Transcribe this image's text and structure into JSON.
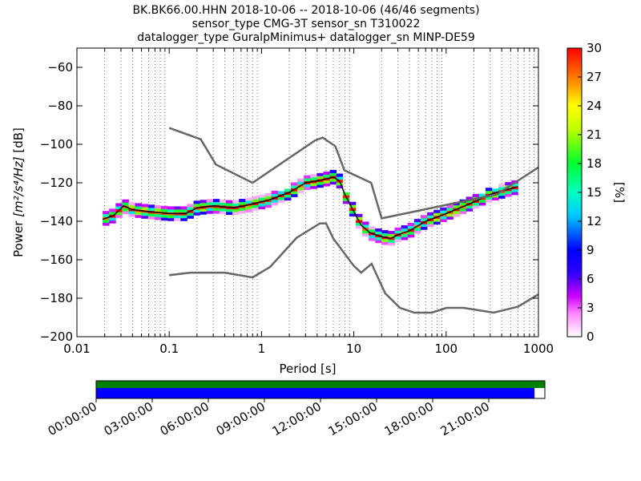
{
  "chart_data": {
    "type": "heatmap",
    "title_lines": [
      "BK.BK66.00.HHN   2018-10-06 -- 2018-10-06  (46/46 segments)",
      "sensor_type CMG-3T sensor_sn T310022",
      "datalogger_type GuralpMinimus+ datalogger_sn MINP-DE59"
    ],
    "xlabel": "Period [s]",
    "ylabel_prefix": "Power ",
    "ylabel_units": "[m²/s⁴/Hz]",
    "ylabel_suffix": " [dB]",
    "x_scale": "log",
    "xlim": [
      0.01,
      1000
    ],
    "ylim": [
      -200,
      -50
    ],
    "x_ticks": [
      0.01,
      0.1,
      1,
      10,
      100,
      1000
    ],
    "x_tick_labels": [
      "0.01",
      "0.1",
      "1",
      "10",
      "100",
      "1000"
    ],
    "y_ticks": [
      -200,
      -180,
      -160,
      -140,
      -120,
      -100,
      -80,
      -60
    ],
    "y_tick_labels": [
      "−200",
      "−180",
      "−160",
      "−140",
      "−120",
      "−100",
      "−80",
      "−60"
    ],
    "grid": "dotted vertical lines at log minors",
    "colorbar": {
      "label": "[%]",
      "min": 0,
      "max": 30,
      "ticks": [
        0,
        3,
        6,
        9,
        12,
        15,
        18,
        21,
        24,
        27,
        30
      ],
      "tick_labels": [
        "0",
        "3",
        "6",
        "9",
        "12",
        "15",
        "18",
        "21",
        "24",
        "27",
        "30"
      ]
    },
    "high_noise_model": {
      "periods": [
        0.1,
        0.22,
        0.32,
        0.8,
        3.8,
        4.6,
        6.3,
        7.9,
        15.4,
        20,
        354.8,
        1000
      ],
      "power": [
        -91.5,
        -97.4,
        -110.5,
        -120,
        -98,
        -96.5,
        -101,
        -113.5,
        -120,
        -138.5,
        -126,
        -112
      ]
    },
    "low_noise_model": {
      "periods": [
        0.1,
        0.17,
        0.4,
        0.8,
        1.24,
        2.4,
        4.3,
        5,
        6,
        10,
        12,
        15.6,
        21.9,
        31.6,
        45,
        70,
        101,
        154,
        328,
        600,
        1000
      ],
      "power": [
        -168,
        -166.7,
        -166.7,
        -169.2,
        -163.7,
        -148.6,
        -141.1,
        -141.1,
        -149,
        -163.2,
        -166.7,
        -162.1,
        -177.5,
        -185,
        -187.5,
        -187.5,
        -185,
        -185,
        -187.5,
        -184.4,
        -178
      ]
    },
    "psd_median": {
      "periods": [
        0.019,
        0.025,
        0.032,
        0.04,
        0.06,
        0.1,
        0.15,
        0.2,
        0.3,
        0.5,
        0.8,
        1.2,
        2,
        3,
        4,
        5,
        6,
        7,
        8,
        10,
        12,
        15,
        20,
        25,
        30,
        40,
        60,
        100,
        200,
        300,
        600
      ],
      "power": [
        -139,
        -137,
        -132,
        -134,
        -135,
        -136,
        -136,
        -133,
        -132,
        -133,
        -131,
        -129,
        -125,
        -120,
        -119,
        -118,
        -117,
        -119,
        -126,
        -135,
        -142,
        -146,
        -148,
        -149,
        -147,
        -145,
        -140,
        -136,
        -130,
        -126,
        -122
      ]
    },
    "psd_spread_db": 3,
    "time_axis": {
      "labels": [
        "00:00:00",
        "03:00:00",
        "06:00:00",
        "09:00:00",
        "12:00:00",
        "15:00:00",
        "18:00:00",
        "21:00:00"
      ],
      "data_coverage_fraction": 1.0,
      "processed_coverage_fraction": 0.977
    },
    "colors": {
      "noise_models": "#666666",
      "coverage_data": "#008000",
      "coverage_processed": "#0000ff",
      "median_line": "#000000"
    }
  }
}
